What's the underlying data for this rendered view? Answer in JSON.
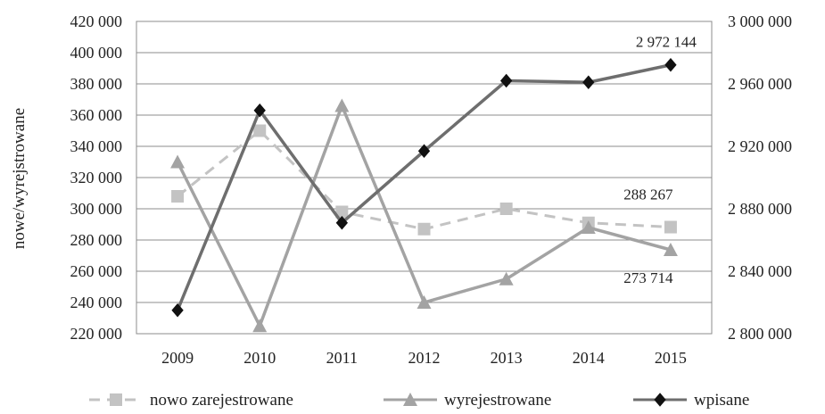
{
  "chart_data": {
    "type": "line",
    "title": "",
    "ylabel": "nowe/wyrejstrowane",
    "y2label": "",
    "categories": [
      "2009",
      "2010",
      "2011",
      "2012",
      "2013",
      "2014",
      "2015"
    ],
    "ylim": [
      220000,
      420000
    ],
    "y2lim": [
      2800000,
      3000000
    ],
    "y_ticks": [
      "220 000",
      "240 000",
      "260 000",
      "280 000",
      "300 000",
      "320 000",
      "340 000",
      "360 000",
      "380 000",
      "400 000",
      "420 000"
    ],
    "y2_ticks": [
      "2 800 000",
      "2 840 000",
      "2 880 000",
      "2 920 000",
      "2 960 000",
      "3 000 000"
    ],
    "grid": true,
    "legend_position": "bottom",
    "series": [
      {
        "name": "nowo zarejestrowane",
        "axis": "left",
        "style": "dashed",
        "marker": "square",
        "color": "#c3c3c3",
        "values": [
          308000,
          350000,
          298000,
          287000,
          300000,
          291000,
          288267
        ]
      },
      {
        "name": "wyrejestrowane",
        "axis": "left",
        "style": "solid",
        "marker": "triangle",
        "color": "#a3a3a3",
        "values": [
          330000,
          225000,
          366000,
          240000,
          255000,
          288000,
          273714
        ]
      },
      {
        "name": "wpisane",
        "axis": "right",
        "style": "solid",
        "marker": "diamond",
        "color": "#6e6e6e",
        "values": [
          2815000,
          2943000,
          2871000,
          2917000,
          2962000,
          2961000,
          2972144
        ]
      }
    ],
    "data_labels": [
      {
        "series": 2,
        "index": 6,
        "text": "2 972 144"
      },
      {
        "series": 0,
        "index": 6,
        "text": "288 267"
      },
      {
        "series": 1,
        "index": 6,
        "text": "273 714"
      }
    ]
  }
}
